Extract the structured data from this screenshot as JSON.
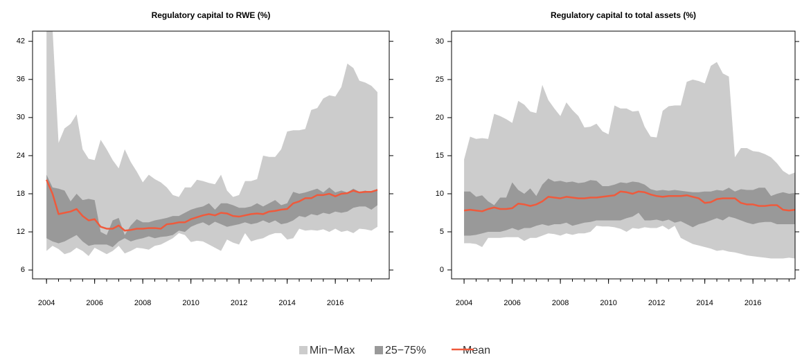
{
  "chart_data": [
    {
      "type": "band",
      "title": "Regulatory capital to RWE (%)",
      "x": [
        2004,
        2004.25,
        2004.5,
        2004.75,
        2005,
        2005.25,
        2005.5,
        2005.75,
        2006,
        2006.25,
        2006.5,
        2006.75,
        2007,
        2007.25,
        2007.5,
        2007.75,
        2008,
        2008.25,
        2008.5,
        2008.75,
        2009,
        2009.25,
        2009.5,
        2009.75,
        2010,
        2010.25,
        2010.5,
        2010.75,
        2011,
        2011.25,
        2011.5,
        2011.75,
        2012,
        2012.25,
        2012.5,
        2012.75,
        2013,
        2013.25,
        2013.5,
        2013.75,
        2014,
        2014.25,
        2014.5,
        2014.75,
        2015,
        2015.25,
        2015.5,
        2015.75,
        2016,
        2016.25,
        2016.5,
        2016.75,
        2017,
        2017.25,
        2017.5,
        2017.75
      ],
      "xlim": [
        2003.42,
        2018.24
      ],
      "xticks": [
        2004,
        2006,
        2008,
        2010,
        2012,
        2014,
        2016
      ],
      "ylim": [
        4.6,
        43.6
      ],
      "yticks": [
        6,
        12,
        18,
        24,
        30,
        36,
        42
      ],
      "series": [
        {
          "low": [
            9,
            9.8,
            9.3,
            8.5,
            8.8,
            9.5,
            9,
            8.2,
            9.5,
            9,
            8.5,
            9,
            9.8,
            8.6,
            9,
            9.5,
            9.4,
            9.2,
            9.8,
            10,
            10.5,
            11,
            11.8,
            11.5,
            10.4,
            10.6,
            10.5,
            10,
            9.5,
            9,
            10.8,
            10.3,
            10,
            11.8,
            10.5,
            10.8,
            11,
            11.5,
            11.8,
            11.8,
            10.8,
            11,
            12.5,
            12.2,
            12.3,
            12.2,
            12.4,
            12,
            12.5,
            12,
            12.2,
            11.8,
            12.5,
            12.4,
            12.2,
            12.8
          ],
          "values": [
            50,
            44,
            26,
            28.3,
            29,
            30.5,
            25,
            23.5,
            23.3,
            26.5,
            25,
            23.3,
            22,
            25,
            23,
            21.5,
            19.8,
            21,
            20.3,
            19.8,
            19,
            17.8,
            17.5,
            19,
            19,
            20.2,
            20,
            19.7,
            19.5,
            21,
            18.5,
            17.5,
            17.8,
            20,
            20,
            20.3,
            24,
            23.8,
            23.8,
            25,
            27.8,
            28,
            28,
            28.2,
            31.2,
            31.5,
            33,
            33.5,
            33.3,
            34.8,
            38.5,
            37.8,
            35.8,
            35.5,
            35,
            34
          ]
        },
        {
          "low": [
            11,
            10.5,
            10.2,
            10.5,
            11,
            11.5,
            10.5,
            9.8,
            10,
            10,
            10,
            9.6,
            10.5,
            11,
            10.5,
            10.8,
            11,
            11.3,
            11,
            11.2,
            11.3,
            11.5,
            12.2,
            12,
            12.8,
            13.2,
            13.5,
            13,
            13.6,
            13.2,
            12.8,
            13,
            13.2,
            13.5,
            13.2,
            13.4,
            13.8,
            13.4,
            13.8,
            13.2,
            13.4,
            13.8,
            14.5,
            14.3,
            14.8,
            14.6,
            15,
            14.8,
            15.2,
            15,
            15.2,
            15.8,
            16,
            16,
            15.5,
            16.2
          ],
          "values": [
            21,
            19,
            18.8,
            18.5,
            16.8,
            18,
            17,
            17.2,
            17,
            12,
            11.5,
            13.8,
            14.2,
            11.5,
            13,
            14,
            13.5,
            13.5,
            13.8,
            14,
            14.2,
            14.5,
            14.5,
            15,
            15.5,
            15.8,
            16,
            16.5,
            15.5,
            16.5,
            16.5,
            16.2,
            15.8,
            15.8,
            16,
            16.5,
            16,
            16.5,
            17,
            16.2,
            16.5,
            18.3,
            18,
            18.2,
            18.5,
            18.8,
            18.2,
            19,
            18.2,
            18.5,
            18.2,
            18.8,
            18.3,
            18.5,
            18.2,
            18.8
          ]
        },
        {
          "values": [
            20.2,
            18,
            14.8,
            15,
            15.2,
            15.6,
            14.5,
            13.8,
            14,
            12.8,
            12.5,
            12.5,
            13,
            12.2,
            12.3,
            12.5,
            12.5,
            12.6,
            12.6,
            12.5,
            13.2,
            13.3,
            13.5,
            13.5,
            14,
            14.3,
            14.6,
            14.8,
            14.6,
            15,
            14.9,
            14.5,
            14.4,
            14.6,
            14.8,
            14.9,
            14.8,
            15.2,
            15.3,
            15.5,
            15.6,
            16.5,
            16.8,
            17.3,
            17.3,
            17.8,
            17.8,
            18,
            17.6,
            18,
            18.1,
            18.5,
            18.2,
            18.3,
            18.3,
            18.6
          ]
        }
      ]
    },
    {
      "type": "band",
      "title": "Regulatory capital to total assets (%)",
      "x": [
        2004,
        2004.25,
        2004.5,
        2004.75,
        2005,
        2005.25,
        2005.5,
        2005.75,
        2006,
        2006.25,
        2006.5,
        2006.75,
        2007,
        2007.25,
        2007.5,
        2007.75,
        2008,
        2008.25,
        2008.5,
        2008.75,
        2009,
        2009.25,
        2009.5,
        2009.75,
        2010,
        2010.25,
        2010.5,
        2010.75,
        2011,
        2011.25,
        2011.5,
        2011.75,
        2012,
        2012.25,
        2012.5,
        2012.75,
        2013,
        2013.25,
        2013.5,
        2013.75,
        2014,
        2014.25,
        2014.5,
        2014.75,
        2015,
        2015.25,
        2015.5,
        2015.75,
        2016,
        2016.25,
        2016.5,
        2016.75,
        2017,
        2017.25,
        2017.5,
        2017.75
      ],
      "xlim": [
        2003.48,
        2017.75
      ],
      "xticks": [
        2004,
        2006,
        2008,
        2010,
        2012,
        2014,
        2016
      ],
      "ylim": [
        -1.18,
        31.36
      ],
      "yticks": [
        0,
        5,
        10,
        15,
        20,
        25,
        30
      ],
      "series": [
        {
          "low": [
            3.5,
            3.5,
            3.4,
            3,
            4.2,
            4.2,
            4.2,
            4.3,
            4.3,
            4.3,
            3.8,
            4.2,
            4.2,
            4.5,
            4.8,
            4.7,
            4.5,
            4.8,
            4.6,
            4.8,
            4.8,
            5,
            5.8,
            5.7,
            5.7,
            5.6,
            5.4,
            5,
            5.5,
            5.4,
            5.6,
            5.5,
            5.5,
            5.8,
            5.3,
            5.8,
            4.2,
            3.8,
            3.4,
            3.2,
            3,
            2.8,
            2.5,
            2.6,
            2.4,
            2.3,
            2.1,
            1.9,
            1.8,
            1.7,
            1.6,
            1.5,
            1.5,
            1.5,
            1.6,
            1.5
          ],
          "values": [
            14.5,
            17.5,
            17.2,
            17.3,
            17.2,
            20.5,
            20.2,
            19.8,
            19.3,
            22.2,
            21.7,
            20.8,
            20.6,
            24.3,
            22.3,
            21.2,
            20.2,
            22,
            21,
            20.2,
            18.7,
            18.8,
            19.2,
            18.2,
            17.8,
            21.6,
            21.2,
            21.2,
            20.8,
            20.9,
            18.8,
            17.5,
            17.4,
            20.9,
            21.5,
            21.6,
            21.6,
            24.7,
            25,
            24.8,
            24.5,
            26.8,
            27.3,
            25.8,
            25.4,
            14.8,
            16,
            16,
            15.6,
            15.5,
            15.2,
            14.8,
            14,
            13,
            12.5,
            12.8
          ]
        },
        {
          "low": [
            4.5,
            4.5,
            4.6,
            4.8,
            5,
            5,
            5,
            5.2,
            5.5,
            5.2,
            5.5,
            5.5,
            5.8,
            6,
            5.8,
            6,
            6,
            6.2,
            5.8,
            6,
            6.2,
            6.3,
            6.5,
            6.5,
            6.5,
            6.5,
            6.5,
            6.8,
            7,
            7.5,
            6.5,
            6.5,
            6.6,
            6.4,
            6.6,
            6.2,
            6.4,
            6,
            5.6,
            6,
            6.2,
            6.5,
            6.8,
            6.5,
            7,
            6.8,
            6.5,
            6.2,
            6,
            6.2,
            6.3,
            6.3,
            6,
            6,
            6,
            6
          ],
          "values": [
            10.3,
            10.3,
            9.6,
            9.8,
            9,
            8.5,
            9.5,
            9.5,
            11.5,
            10.5,
            10,
            10.7,
            9.7,
            11.2,
            12,
            11.6,
            11.7,
            11.5,
            11.6,
            11.4,
            11.5,
            11.8,
            11.7,
            11,
            11,
            11.2,
            11.5,
            11.4,
            11.6,
            11.5,
            11.2,
            10.6,
            10.4,
            10.5,
            10.4,
            10.5,
            10.4,
            10.3,
            10.2,
            10.2,
            10.3,
            10.3,
            10.5,
            10.4,
            10.8,
            10.3,
            10.6,
            10.5,
            10.5,
            10.8,
            10.8,
            9.7,
            10,
            10.2,
            10,
            10.1
          ]
        },
        {
          "values": [
            7.8,
            7.9,
            7.8,
            7.7,
            8,
            8.2,
            8,
            8,
            8.1,
            8.7,
            8.6,
            8.4,
            8.6,
            9,
            9.6,
            9.5,
            9.4,
            9.6,
            9.5,
            9.4,
            9.4,
            9.5,
            9.5,
            9.6,
            9.7,
            9.8,
            10.3,
            10.2,
            10,
            10.3,
            10.2,
            9.9,
            9.7,
            9.6,
            9.7,
            9.7,
            9.7,
            9.8,
            9.6,
            9.4,
            8.8,
            8.9,
            9.3,
            9.4,
            9.4,
            9.4,
            8.8,
            8.6,
            8.6,
            8.4,
            8.4,
            8.5,
            8.5,
            7.9,
            7.8,
            7.9
          ]
        }
      ]
    }
  ],
  "legend": {
    "entries": [
      {
        "name": "Min−Max",
        "color": "#cccccc"
      },
      {
        "name": "25−75%",
        "color": "#999999"
      },
      {
        "name": "Mean",
        "color": "#ef5a3c"
      }
    ]
  }
}
